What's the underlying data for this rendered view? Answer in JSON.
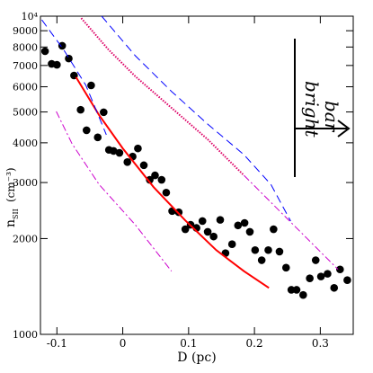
{
  "chart_data": {
    "type": "scatter",
    "xlabel": "D (pc)",
    "ylabel": "n",
    "ylabel_sub": "SII",
    "ylabel_unit": "(cm⁻³)",
    "annotation": [
      "bright",
      "bar"
    ],
    "xlim": [
      -0.125,
      0.35
    ],
    "ylim": [
      1000,
      10000
    ],
    "log_y": true,
    "xticks": [
      -0.1,
      0,
      0.1,
      0.2,
      0.3
    ],
    "yticks": [
      1000,
      2000,
      3000,
      4000,
      5000,
      6000,
      7000,
      8000,
      9000,
      {
        "value": 10000,
        "label": "10⁴"
      }
    ],
    "series": [
      {
        "kind": "points",
        "color": "#000000",
        "x": [
          -0.118,
          -0.108,
          -0.1,
          -0.092,
          -0.082,
          -0.074,
          -0.064,
          -0.055,
          -0.048,
          -0.038,
          -0.029,
          -0.021,
          -0.014,
          -0.005,
          0.007,
          0.015,
          0.023,
          0.032,
          0.041,
          0.049,
          0.059,
          0.066,
          0.075,
          0.085,
          0.095,
          0.103,
          0.112,
          0.121,
          0.129,
          0.138,
          0.148,
          0.156,
          0.166,
          0.175,
          0.185,
          0.193,
          0.201,
          0.211,
          0.221,
          0.229,
          0.238,
          0.248,
          0.256,
          0.264,
          0.274,
          0.284,
          0.293,
          0.301,
          0.311,
          0.321,
          0.33,
          0.341
        ],
        "values": [
          7760,
          7080,
          7035,
          8070,
          7360,
          6510,
          5080,
          4380,
          6060,
          4160,
          4990,
          3800,
          3770,
          3720,
          3480,
          3620,
          3840,
          3400,
          3060,
          3160,
          3060,
          2790,
          2440,
          2420,
          2140,
          2210,
          2160,
          2270,
          2100,
          2030,
          2290,
          1800,
          1920,
          2200,
          2240,
          2100,
          1840,
          1710,
          1840,
          2140,
          1820,
          1620,
          1380,
          1380,
          1330,
          1500,
          1710,
          1520,
          1550,
          1400,
          1600,
          1480
        ]
      },
      {
        "kind": "line",
        "color": "#ff0000",
        "dash": "none",
        "width": 2,
        "x": [
          -0.071,
          -0.036,
          0,
          0.047,
          0.095,
          0.142,
          0.184,
          0.222
        ],
        "values": [
          6430,
          4890,
          3840,
          2900,
          2280,
          1840,
          1580,
          1400
        ]
      },
      {
        "kind": "line",
        "color": "#0000ff",
        "dash": "9 5",
        "width": 1,
        "x": [
          -0.032,
          0.019,
          0.074,
          0.129,
          0.184,
          0.225,
          0.255
        ],
        "values": [
          10000,
          7510,
          5800,
          4580,
          3670,
          2960,
          2270
        ]
      },
      {
        "kind": "line",
        "color": "#0000ff",
        "dash": "9 5",
        "width": 1,
        "x": [
          -0.123,
          -0.09,
          -0.056,
          -0.025
        ],
        "values": [
          9740,
          7860,
          6060,
          4240
        ]
      },
      {
        "kind": "line",
        "color": "#dd0066",
        "dash": "1.5 1.5",
        "width": 2,
        "x": [
          -0.063,
          -0.022,
          0.019,
          0.074,
          0.129,
          0.184
        ],
        "values": [
          9860,
          7860,
          6470,
          5150,
          4100,
          3160
        ]
      },
      {
        "kind": "line",
        "color": "#cc00cc",
        "dash": "8 3 2 3",
        "width": 1,
        "x": [
          0.184,
          0.225,
          0.279,
          0.327
        ],
        "values": [
          3160,
          2600,
          2010,
          1600
        ]
      },
      {
        "kind": "line",
        "color": "#cc00cc",
        "dash": "8 3 2 3",
        "width": 1,
        "x": [
          -0.101,
          -0.077,
          -0.036,
          0.019,
          0.074
        ],
        "values": [
          5020,
          3970,
          2960,
          2210,
          1580
        ]
      }
    ]
  }
}
